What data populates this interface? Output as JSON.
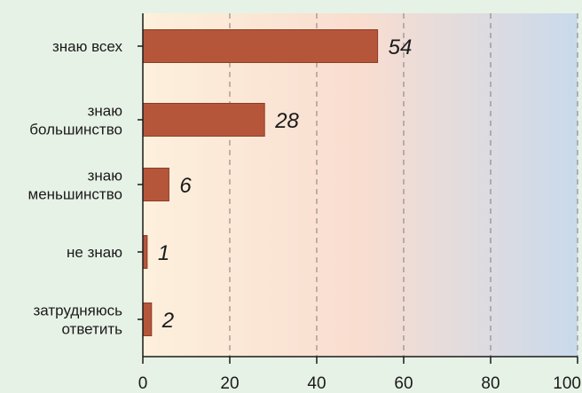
{
  "colors": {
    "background": "#e7f2e6",
    "bar": "#b5563a",
    "bar_edge": "#8c3d27",
    "plot_left": "#fdf0dc",
    "plot_mid": "#f9ddd0",
    "plot_right": "#c9daec",
    "grid": "#7d7d7d"
  },
  "chart_data": {
    "type": "bar",
    "orientation": "horizontal",
    "categories": [
      [
        "знаю всех"
      ],
      [
        "знаю",
        "большинство"
      ],
      [
        "знаю",
        "меньшинство"
      ],
      [
        "не знаю"
      ],
      [
        "затрудняюсь",
        "ответить"
      ]
    ],
    "values": [
      54,
      28,
      6,
      1,
      2
    ],
    "value_labels": [
      "54",
      "28",
      "6",
      "1",
      "2"
    ],
    "xlim": [
      0,
      100
    ],
    "x_ticks": [
      0,
      20,
      40,
      60,
      80,
      100
    ],
    "grid": "vertical dashed",
    "title": "",
    "xlabel": "",
    "ylabel": ""
  }
}
